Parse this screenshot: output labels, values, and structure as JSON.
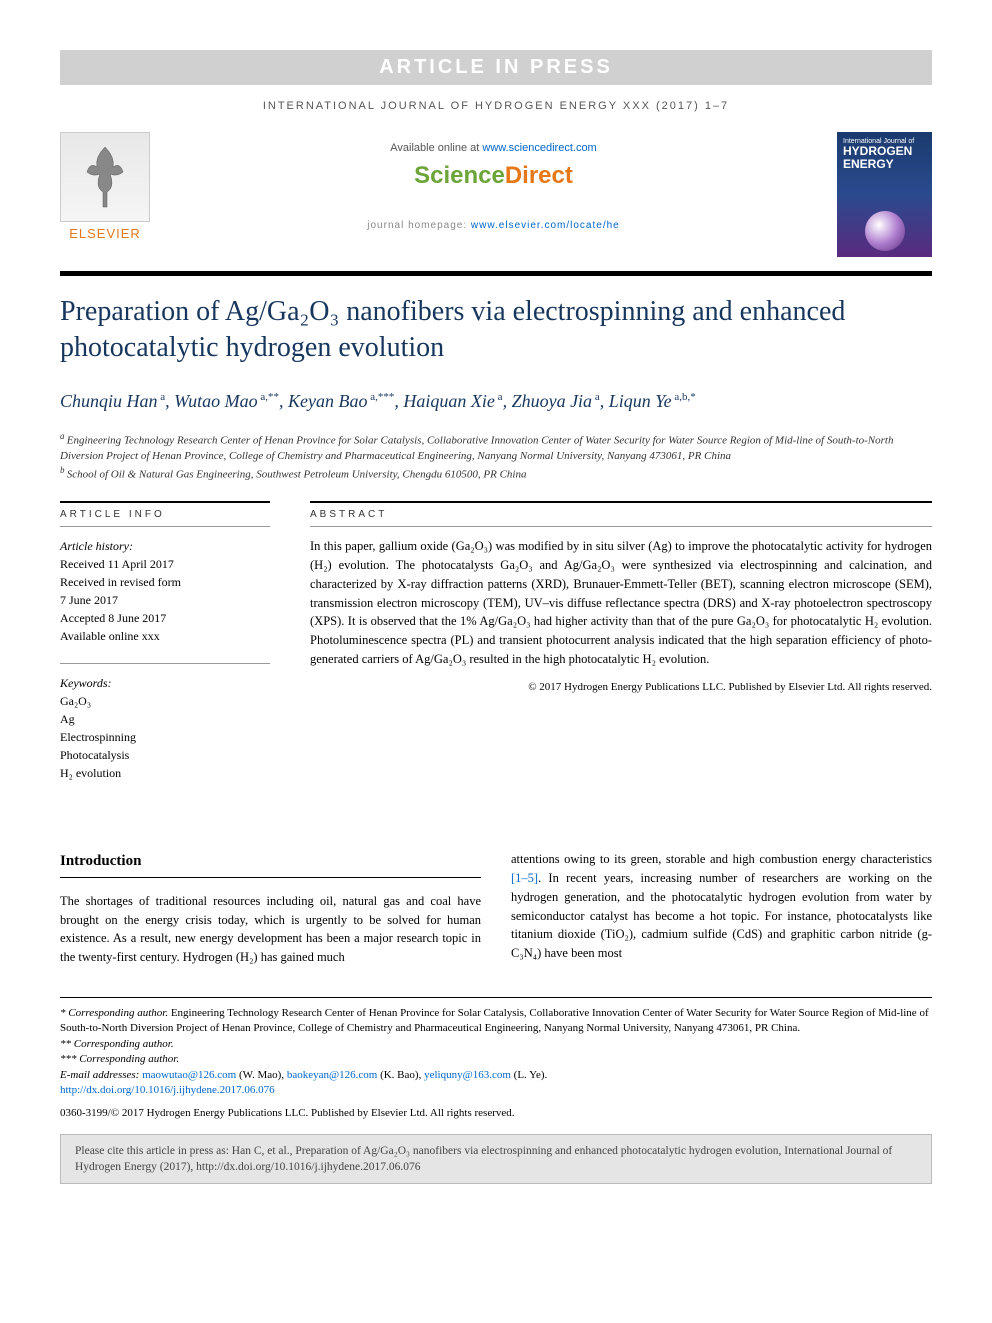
{
  "pressBanner": "ARTICLE IN PRESS",
  "journalRef": "INTERNATIONAL JOURNAL OF HYDROGEN ENERGY XXX (2017) 1–7",
  "header": {
    "availableText": "Available online at ",
    "availableLink": "www.sciencedirect.com",
    "sdLogoGreen": "Science",
    "sdLogoOrange": "Direct",
    "homepageLabel": "journal homepage: ",
    "homepageLink": "www.elsevier.com/locate/he",
    "elsevierName": "ELSEVIER",
    "coverTopText": "International Journal of",
    "coverTitle": "HYDROGEN ENERGY"
  },
  "title": "Preparation of Ag/Ga₂O₃ nanofibers via electrospinning and enhanced photocatalytic hydrogen evolution",
  "authors": [
    {
      "name": "Chunqiu Han",
      "sup": "a"
    },
    {
      "name": "Wutao Mao",
      "sup": "a,**"
    },
    {
      "name": "Keyan Bao",
      "sup": "a,***"
    },
    {
      "name": "Haiquan Xie",
      "sup": "a"
    },
    {
      "name": "Zhuoya Jia",
      "sup": "a"
    },
    {
      "name": "Liqun Ye",
      "sup": "a,b,*"
    }
  ],
  "affiliations": [
    {
      "sup": "a",
      "text": "Engineering Technology Research Center of Henan Province for Solar Catalysis, Collaborative Innovation Center of Water Security for Water Source Region of Mid-line of South-to-North Diversion Project of Henan Province, College of Chemistry and Pharmaceutical Engineering, Nanyang Normal University, Nanyang 473061, PR China"
    },
    {
      "sup": "b",
      "text": "School of Oil & Natural Gas Engineering, Southwest Petroleum University, Chengdu 610500, PR China"
    }
  ],
  "articleInfo": {
    "heading": "ARTICLE INFO",
    "historyLabel": "Article history:",
    "history": [
      "Received 11 April 2017",
      "Received in revised form",
      "7 June 2017",
      "Accepted 8 June 2017",
      "Available online xxx"
    ],
    "keywordsLabel": "Keywords:",
    "keywords": [
      "Ga₂O₃",
      "Ag",
      "Electrospinning",
      "Photocatalysis",
      "H₂ evolution"
    ]
  },
  "abstract": {
    "heading": "ABSTRACT",
    "text": "In this paper, gallium oxide (Ga₂O₃) was modified by in situ silver (Ag) to improve the photocatalytic activity for hydrogen (H₂) evolution. The photocatalysts Ga₂O₃ and Ag/Ga₂O₃ were synthesized via electrospinning and calcination, and characterized by X-ray diffraction patterns (XRD), Brunauer-Emmett-Teller (BET), scanning electron microscope (SEM), transmission electron microscopy (TEM), UV–vis diffuse reflectance spectra (DRS) and X-ray photoelectron spectroscopy (XPS). It is observed that the 1% Ag/Ga₂O₃ had higher activity than that of the pure Ga₂O₃ for photocatalytic H₂ evolution. Photoluminescence spectra (PL) and transient photocurrent analysis indicated that the high separation efficiency of photo-generated carriers of Ag/Ga₂O₃ resulted in the high photocatalytic H₂ evolution.",
    "copyright": "© 2017 Hydrogen Energy Publications LLC. Published by Elsevier Ltd. All rights reserved."
  },
  "introduction": {
    "heading": "Introduction",
    "col1": "The shortages of traditional resources including oil, natural gas and coal have brought on the energy crisis today, which is urgently to be solved for human existence. As a result, new energy development has been a major research topic in the twenty-first century. Hydrogen (H₂) has gained much",
    "col2_pre": "attentions owing to its green, storable and high combustion energy characteristics ",
    "col2_ref": "[1–5]",
    "col2_post": ". In recent years, increasing number of researchers are working on the hydrogen generation, and the photocatalytic hydrogen evolution from water by semiconductor catalyst has become a hot topic. For instance, photocatalysts like titanium dioxide (TiO₂), cadmium sulfide (CdS) and graphitic carbon nitride (g-C₃N₄) have been most"
  },
  "footnotes": {
    "corr1_label": "* Corresponding author.",
    "corr1_text": " Engineering Technology Research Center of Henan Province for Solar Catalysis, Collaborative Innovation Center of Water Security for Water Source Region of Mid-line of South-to-North Diversion Project of Henan Province, College of Chemistry and Pharmaceutical Engineering, Nanyang Normal University, Nanyang 473061, PR China.",
    "corr2": "** Corresponding author.",
    "corr3": "*** Corresponding author.",
    "emailLabel": "E-mail addresses: ",
    "emails": [
      {
        "addr": "maowutao@126.com",
        "who": " (W. Mao), "
      },
      {
        "addr": "baokeyan@126.com",
        "who": " (K. Bao), "
      },
      {
        "addr": "yeliquny@163.com",
        "who": " (L. Ye)."
      }
    ],
    "doi": "http://dx.doi.org/10.1016/j.ijhydene.2017.06.076",
    "issn": "0360-3199/© 2017 Hydrogen Energy Publications LLC. Published by Elsevier Ltd. All rights reserved."
  },
  "citeBox": "Please cite this article in press as: Han C, et al., Preparation of Ag/Ga₂O₃ nanofibers via electrospinning and enhanced photocatalytic hydrogen evolution, International Journal of Hydrogen Energy (2017), http://dx.doi.org/10.1016/j.ijhydene.2017.06.076",
  "colors": {
    "titleBlue": "#17365d",
    "linkBlue": "#0066cc",
    "elsevierOrange": "#e67817",
    "sdGreen": "#6ba539"
  }
}
